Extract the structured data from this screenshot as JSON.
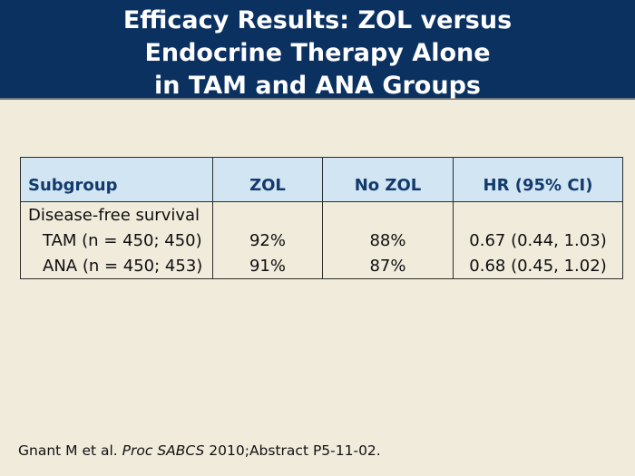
{
  "slide": {
    "title_lines": [
      "Efficacy Results: ZOL versus",
      "Endocrine Therapy Alone",
      "in TAM and ANA Groups"
    ],
    "colors": {
      "title_band_navy": "#0b3161",
      "title_text": "#ffffff",
      "body_background_cream": "#f0ebdb",
      "table_header_blue": "#d2e5f2",
      "table_header_text_navy": "#123a6d",
      "table_border": "#2d2d2d",
      "body_text": "#0f0f0f"
    }
  },
  "table": {
    "columns": [
      "Subgroup",
      "ZOL",
      "No ZOL",
      "HR (95% CI)"
    ],
    "rows": [
      {
        "subgroup": "Disease-free survival",
        "zol": "",
        "no_zol": "",
        "hr": ""
      },
      {
        "subgroup": "TAM (n = 450; 450)",
        "zol": "92%",
        "no_zol": "88%",
        "hr": "0.67 (0.44, 1.03)"
      },
      {
        "subgroup": "ANA (n = 450; 453)",
        "zol": "91%",
        "no_zol": "87%",
        "hr": "0.68 (0.45, 1.02)"
      }
    ]
  },
  "footer": {
    "citation_prefix": "Gnant M et al. ",
    "citation_italic": "Proc SABCS",
    "citation_suffix": " 2010;Abstract P5-11-02."
  }
}
